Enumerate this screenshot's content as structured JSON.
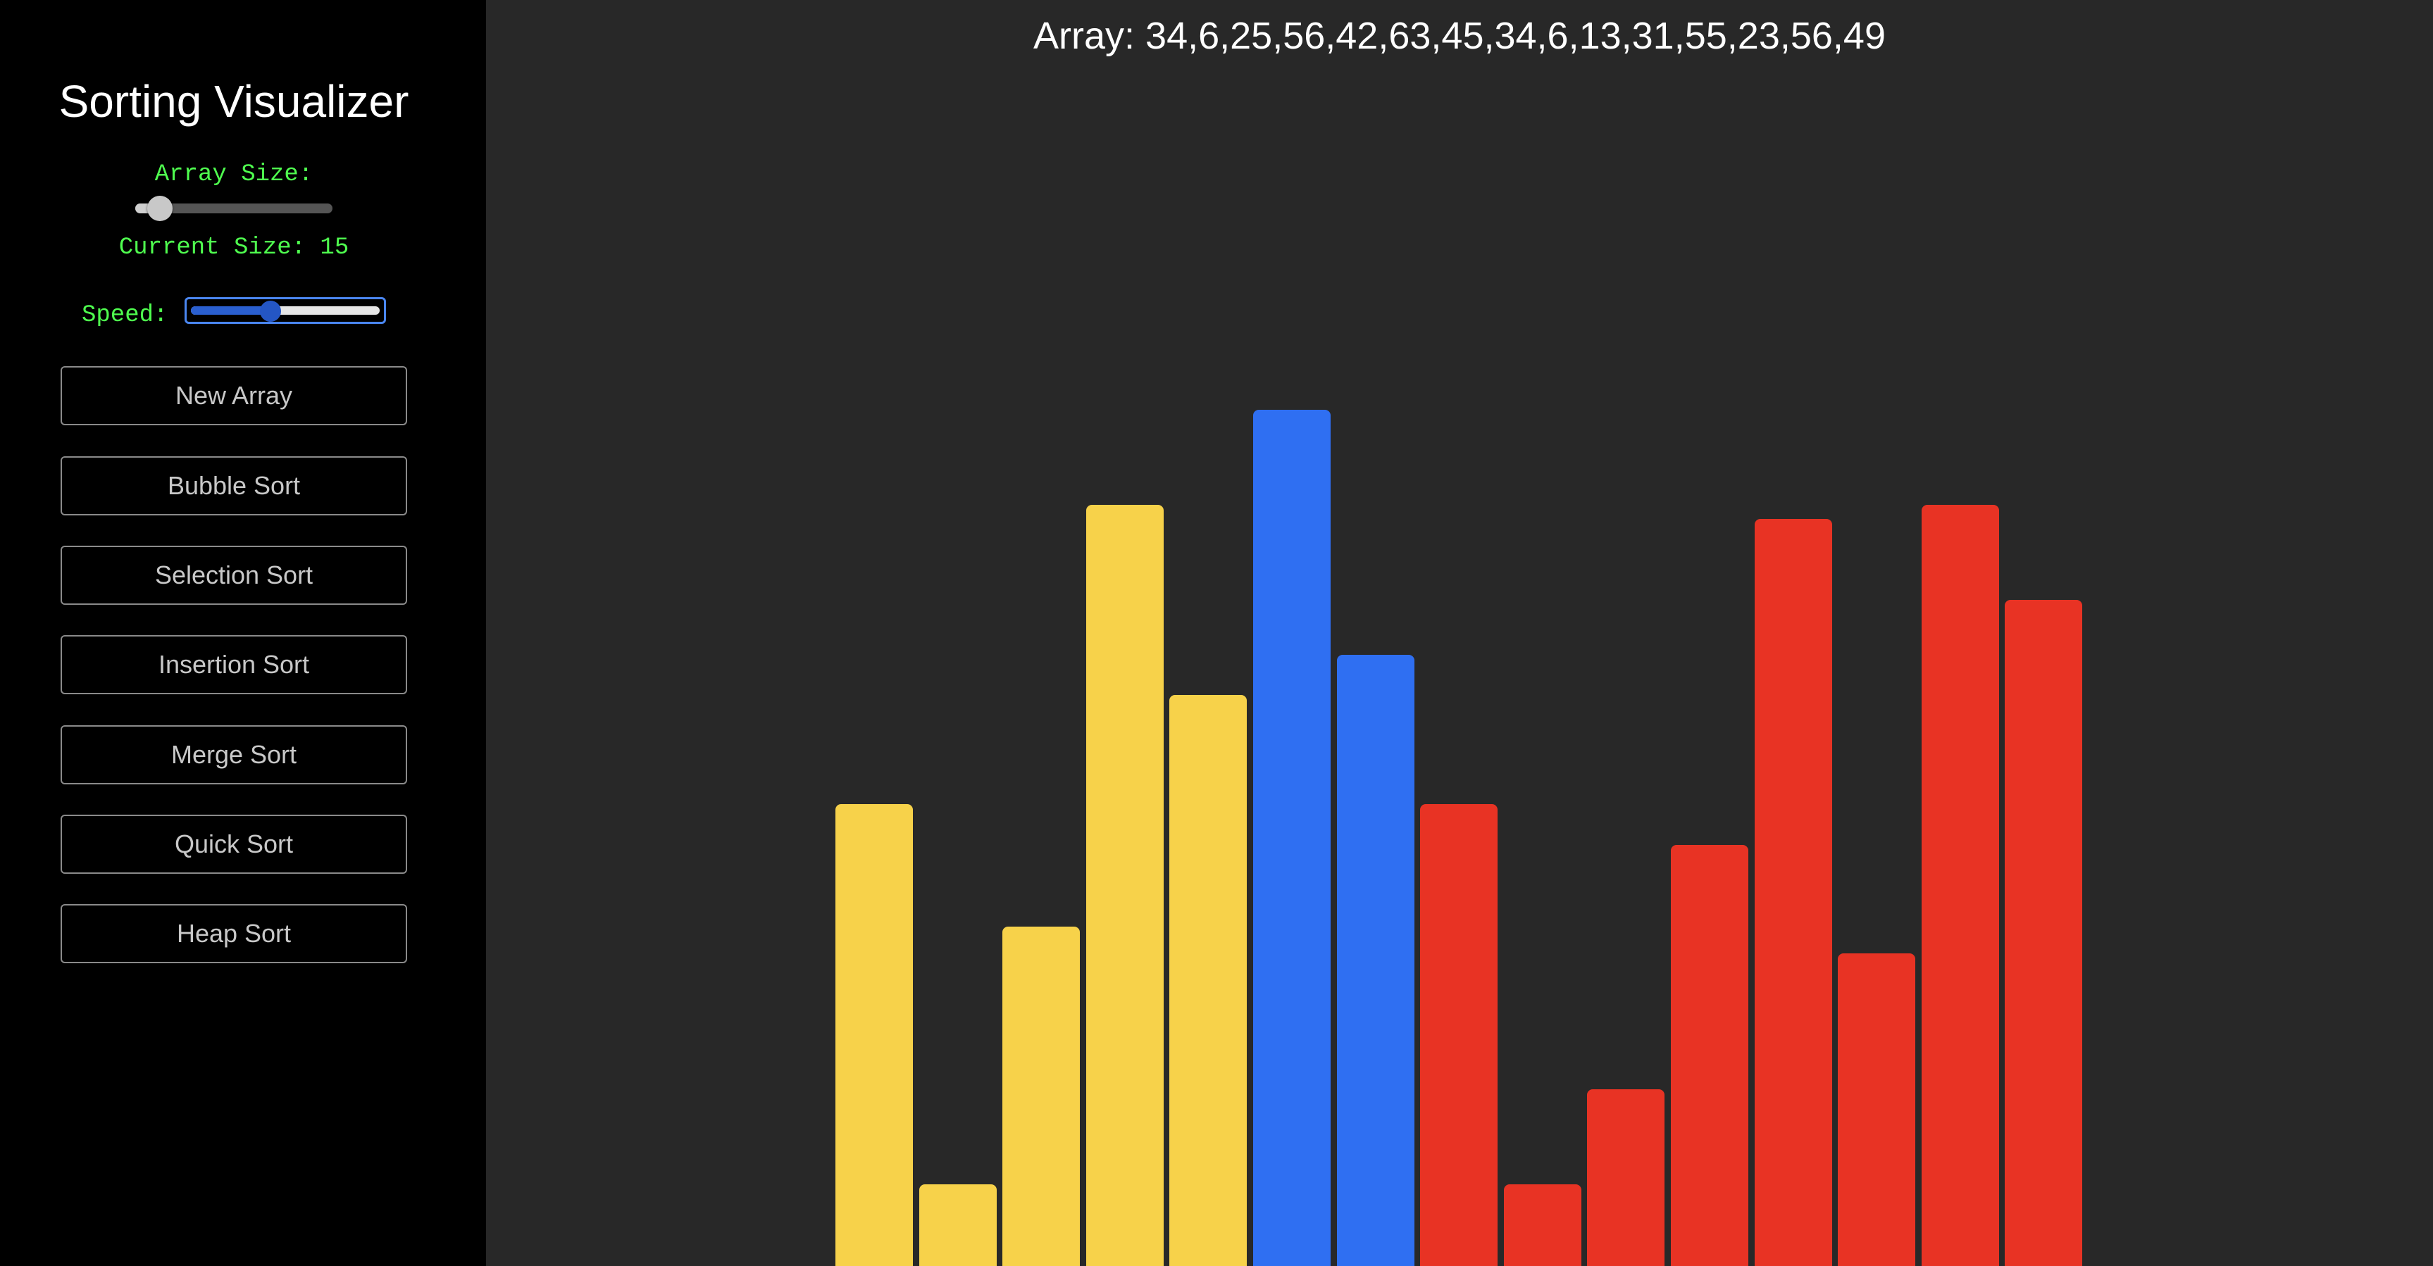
{
  "sidebar": {
    "title": "Sorting Visualizer",
    "array_size_label": "Array Size:",
    "array_size_fraction": 0.07,
    "current_size_text": "Current Size: 15",
    "speed_label": "Speed:",
    "speed_fraction": 0.41,
    "buttons": [
      {
        "id": "new-array",
        "label": "New Array"
      },
      {
        "id": "bubble-sort",
        "label": "Bubble Sort"
      },
      {
        "id": "selection-sort",
        "label": "Selection Sort"
      },
      {
        "id": "insertion-sort",
        "label": "Insertion Sort"
      },
      {
        "id": "merge-sort",
        "label": "Merge Sort"
      },
      {
        "id": "quick-sort",
        "label": "Quick Sort"
      },
      {
        "id": "heap-sort",
        "label": "Heap Sort"
      }
    ]
  },
  "main": {
    "array_text": "Array: 34,6,25,56,42,63,45,34,6,13,31,55,23,56,49"
  },
  "colors": {
    "yellow": "#f7d24a",
    "blue": "#2f6ff2",
    "red": "#e83324",
    "accent_green": "#4fff4f"
  },
  "chart_data": {
    "type": "bar",
    "values": [
      34,
      6,
      25,
      56,
      42,
      63,
      45,
      34,
      6,
      13,
      31,
      55,
      23,
      56,
      49
    ],
    "bar_colors": [
      "yellow",
      "yellow",
      "yellow",
      "yellow",
      "yellow",
      "blue",
      "blue",
      "red",
      "red",
      "red",
      "red",
      "red",
      "red",
      "red",
      "red"
    ]
  }
}
